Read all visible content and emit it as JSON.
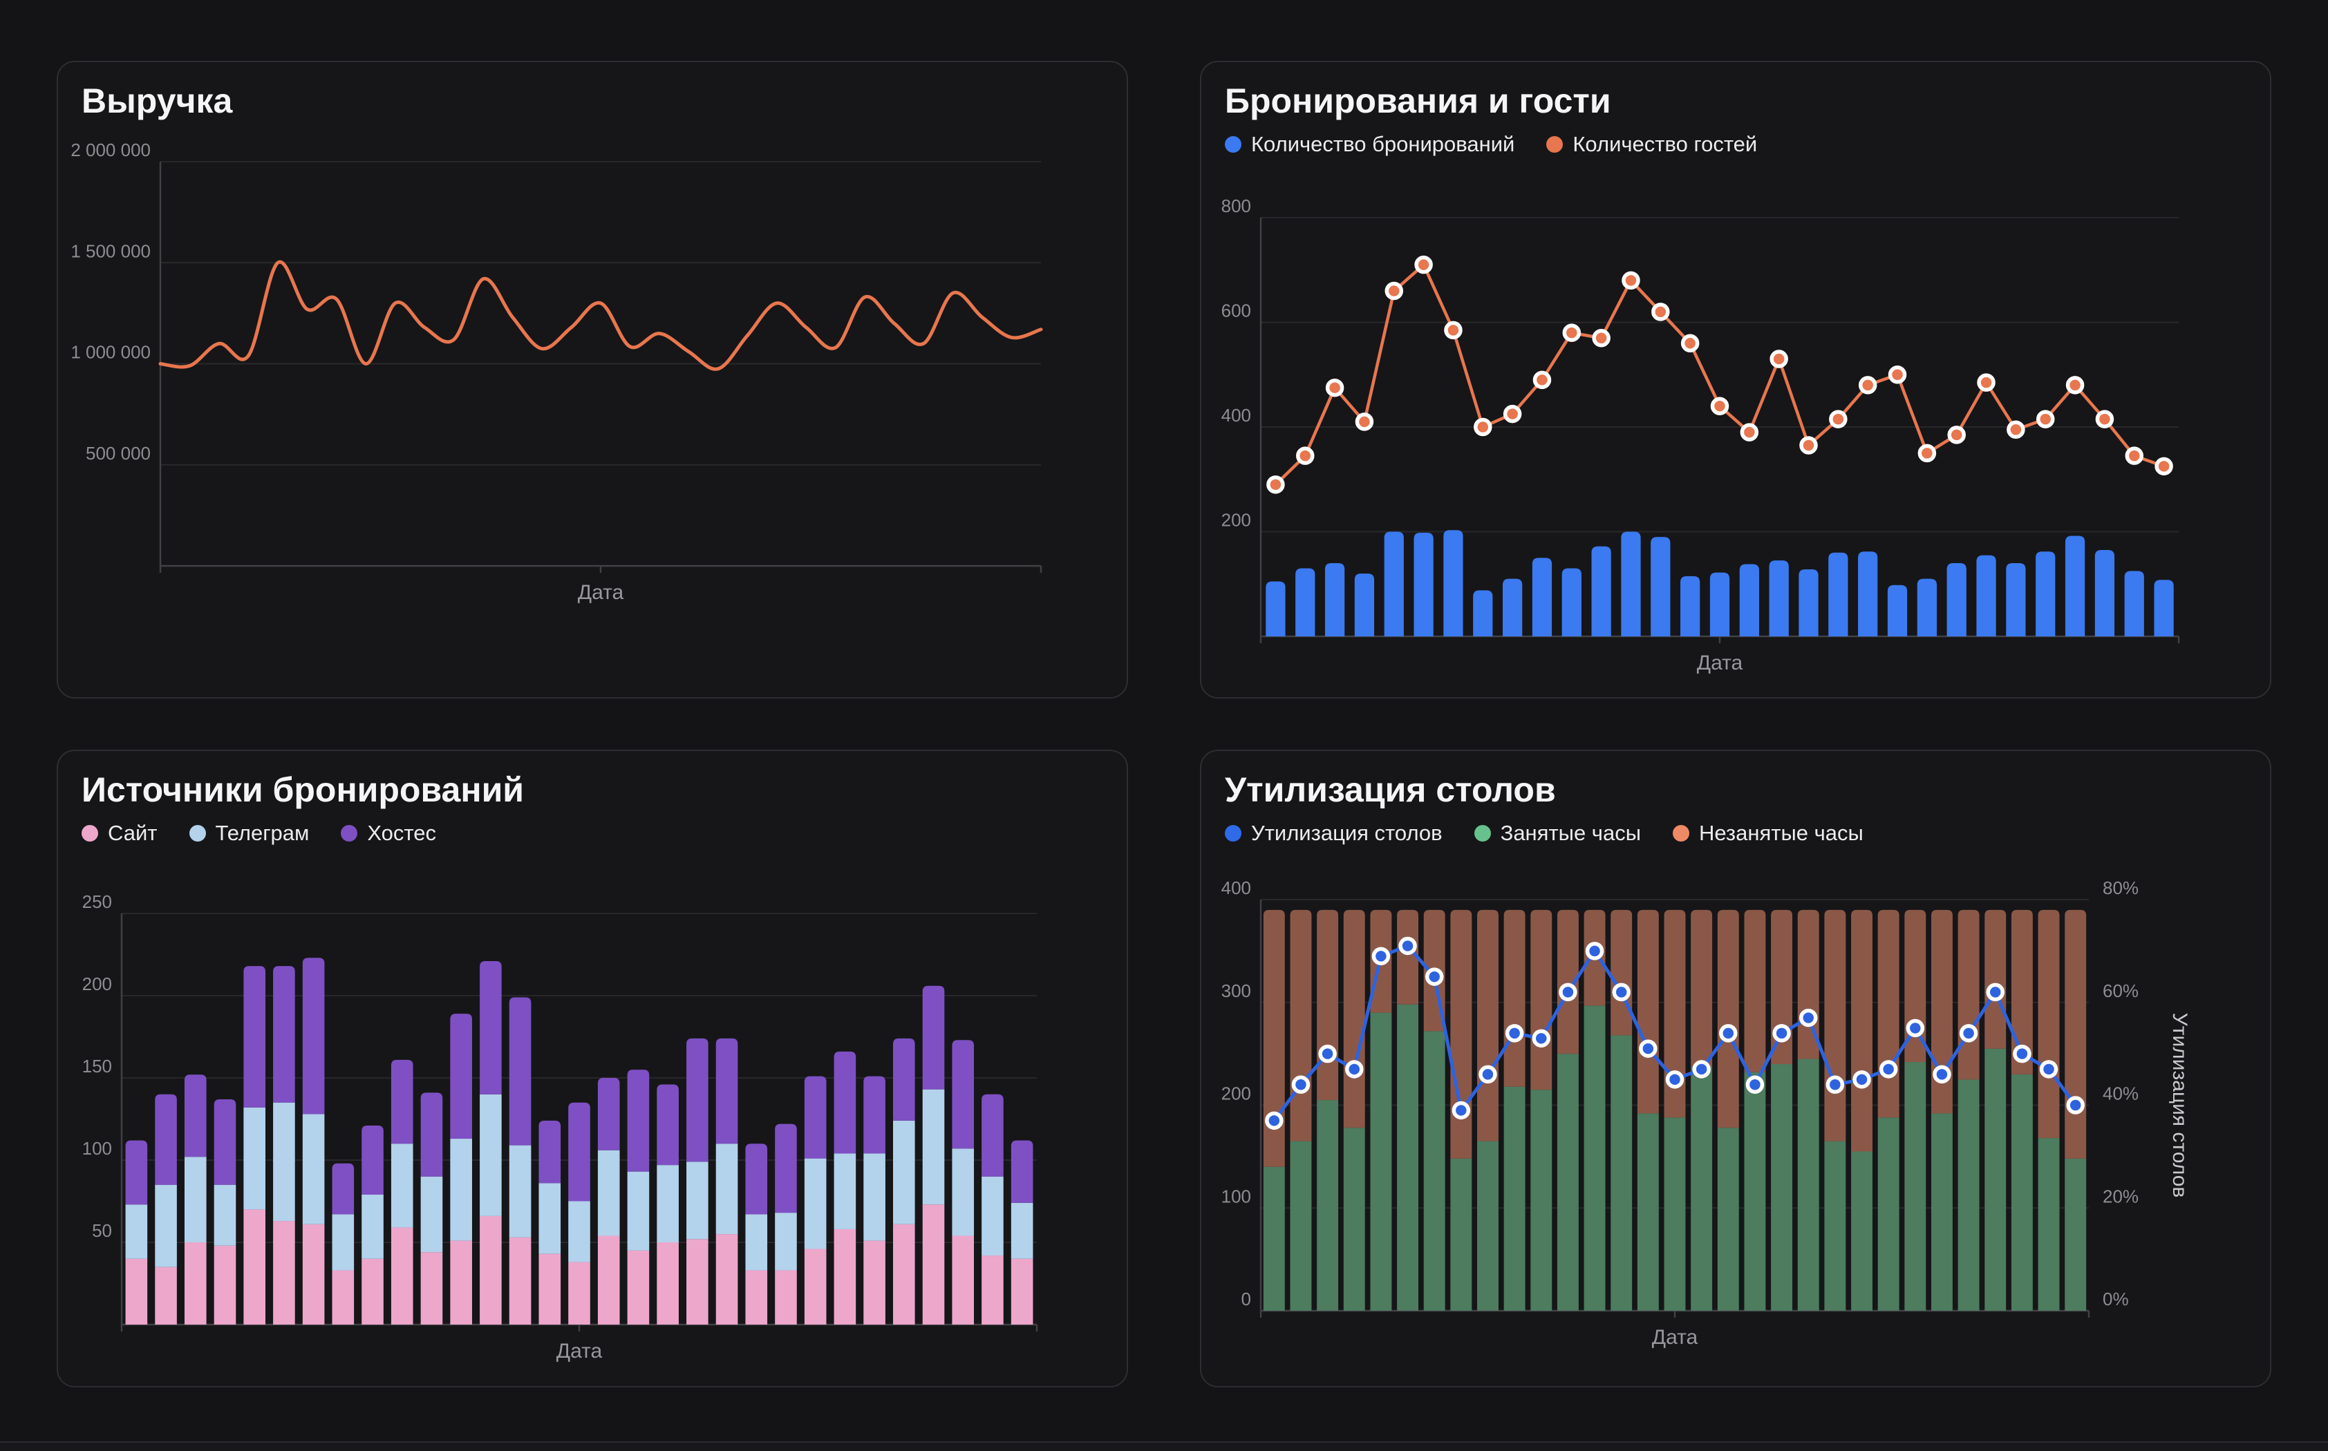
{
  "chart_data": [
    {
      "type": "line",
      "title": "Выручка",
      "xlabel": "Дата",
      "ylim": [
        0,
        2000000
      ],
      "yticks": [
        {
          "v": 2000000,
          "label": "2 000 000"
        },
        {
          "v": 1500000,
          "label": "1 500 000"
        },
        {
          "v": 1000000,
          "label": "1 000 000"
        },
        {
          "v": 500000,
          "label": "500 000"
        }
      ],
      "grid": true,
      "series": [
        {
          "name": "Выручка",
          "color": "#e8764e",
          "values": [
            1000000,
            990000,
            1100000,
            1040000,
            1500000,
            1270000,
            1320000,
            1000000,
            1300000,
            1180000,
            1120000,
            1420000,
            1230000,
            1075000,
            1180000,
            1300000,
            1085000,
            1150000,
            1060000,
            975000,
            1140000,
            1300000,
            1180000,
            1080000,
            1330000,
            1200000,
            1100000,
            1350000,
            1230000,
            1130000,
            1170000
          ]
        }
      ]
    },
    {
      "type": "bar-line",
      "title": "Бронирования и гости",
      "xlabel": "Дата",
      "ylim": [
        0,
        800
      ],
      "yticks": [
        {
          "v": 800,
          "label": "800"
        },
        {
          "v": 600,
          "label": "600"
        },
        {
          "v": 400,
          "label": "400"
        },
        {
          "v": 200,
          "label": "200"
        }
      ],
      "grid": true,
      "legend": [
        {
          "label": "Количество бронирований",
          "color": "#3b7af0"
        },
        {
          "label": "Количество гостей",
          "color": "#e8764e"
        }
      ],
      "bars": {
        "name": "Количество бронирований",
        "color": "#3b7af0",
        "values": [
          105,
          130,
          140,
          120,
          200,
          198,
          203,
          88,
          110,
          150,
          130,
          172,
          200,
          190,
          115,
          122,
          138,
          145,
          128,
          160,
          162,
          98,
          110,
          140,
          155,
          140,
          162,
          192,
          165,
          125,
          108
        ]
      },
      "line": {
        "name": "Количество гостей",
        "color": "#e8764e",
        "dots": true,
        "values": [
          290,
          345,
          475,
          410,
          660,
          710,
          585,
          400,
          425,
          490,
          580,
          570,
          680,
          620,
          560,
          440,
          390,
          530,
          365,
          415,
          480,
          500,
          350,
          385,
          485,
          395,
          415,
          480,
          415,
          345,
          325
        ]
      }
    },
    {
      "type": "stacked-bar",
      "title": "Источники бронирований",
      "xlabel": "Дата",
      "ylim": [
        0,
        250
      ],
      "yticks": [
        {
          "v": 250,
          "label": "250"
        },
        {
          "v": 200,
          "label": "200"
        },
        {
          "v": 150,
          "label": "150"
        },
        {
          "v": 100,
          "label": "100"
        },
        {
          "v": 50,
          "label": "50"
        }
      ],
      "grid": true,
      "legend": [
        {
          "label": "Сайт",
          "color": "#eda7cb"
        },
        {
          "label": "Телеграм",
          "color": "#b3d2ec"
        },
        {
          "label": "Хостес",
          "color": "#7e50c4"
        }
      ],
      "series": [
        {
          "name": "Сайт",
          "color": "#eda7cb",
          "values": [
            40,
            35,
            50,
            48,
            70,
            63,
            61,
            33,
            40,
            59,
            44,
            51,
            66,
            53,
            43,
            38,
            54,
            45,
            50,
            52,
            55,
            33,
            33,
            46,
            58,
            51,
            61,
            73,
            54,
            42,
            40
          ]
        },
        {
          "name": "Телеграм",
          "color": "#b3d2ec",
          "values": [
            33,
            50,
            52,
            37,
            62,
            72,
            67,
            34,
            39,
            51,
            46,
            62,
            74,
            56,
            43,
            37,
            52,
            48,
            47,
            47,
            55,
            34,
            35,
            55,
            46,
            53,
            63,
            70,
            53,
            48,
            34
          ]
        },
        {
          "name": "Хостес",
          "color": "#7e50c4",
          "values": [
            39,
            55,
            50,
            52,
            86,
            83,
            95,
            31,
            42,
            51,
            51,
            76,
            81,
            90,
            38,
            60,
            44,
            62,
            49,
            75,
            64,
            43,
            54,
            50,
            62,
            47,
            50,
            63,
            66,
            50,
            38
          ]
        }
      ]
    },
    {
      "type": "stacked-bar-line",
      "title": "Утилизация столов",
      "xlabel": "Дата",
      "ylabel_right": "Утилизация столов",
      "ylim": [
        0,
        400
      ],
      "yticks": [
        {
          "v": 400,
          "label": "400"
        },
        {
          "v": 300,
          "label": "300"
        },
        {
          "v": 200,
          "label": "200"
        },
        {
          "v": 100,
          "label": "100"
        },
        {
          "v": 0,
          "label": "0"
        }
      ],
      "ylim_right": [
        0,
        80
      ],
      "yticks_right": [
        {
          "v": 80,
          "label": "80%"
        },
        {
          "v": 60,
          "label": "60%"
        },
        {
          "v": 40,
          "label": "40%"
        },
        {
          "v": 20,
          "label": "20%"
        },
        {
          "v": 0,
          "label": "0%"
        }
      ],
      "grid": true,
      "legend": [
        {
          "label": "Утилизация столов",
          "color": "#2f6be8"
        },
        {
          "label": "Занятые часы",
          "color": "#67c18c"
        },
        {
          "label": "Незанятые часы",
          "color": "#ee8b66"
        }
      ],
      "series": [
        {
          "name": "Занятые часы",
          "color": "#4d7c5f",
          "values": [
            140,
            165,
            205,
            178,
            290,
            298,
            272,
            148,
            165,
            218,
            215,
            250,
            297,
            268,
            192,
            188,
            238,
            178,
            232,
            240,
            245,
            165,
            155,
            188,
            242,
            192,
            225,
            255,
            230,
            168,
            148
          ]
        },
        {
          "name": "Незанятые часы",
          "color": "#8b5848",
          "values": [
            250,
            225,
            185,
            212,
            100,
            92,
            118,
            242,
            225,
            172,
            175,
            140,
            93,
            122,
            198,
            202,
            152,
            212,
            158,
            150,
            145,
            225,
            235,
            202,
            148,
            198,
            165,
            135,
            160,
            222,
            242
          ]
        }
      ],
      "line": {
        "name": "Утилизация столов",
        "color": "#2e63e0",
        "axis": "right",
        "dots": true,
        "values": [
          37,
          44,
          50,
          47,
          69,
          71,
          65,
          39,
          46,
          54,
          53,
          62,
          70,
          62,
          51,
          45,
          47,
          54,
          44,
          54,
          57,
          44,
          45,
          47,
          55,
          46,
          54,
          62,
          50,
          47,
          40
        ]
      }
    }
  ]
}
